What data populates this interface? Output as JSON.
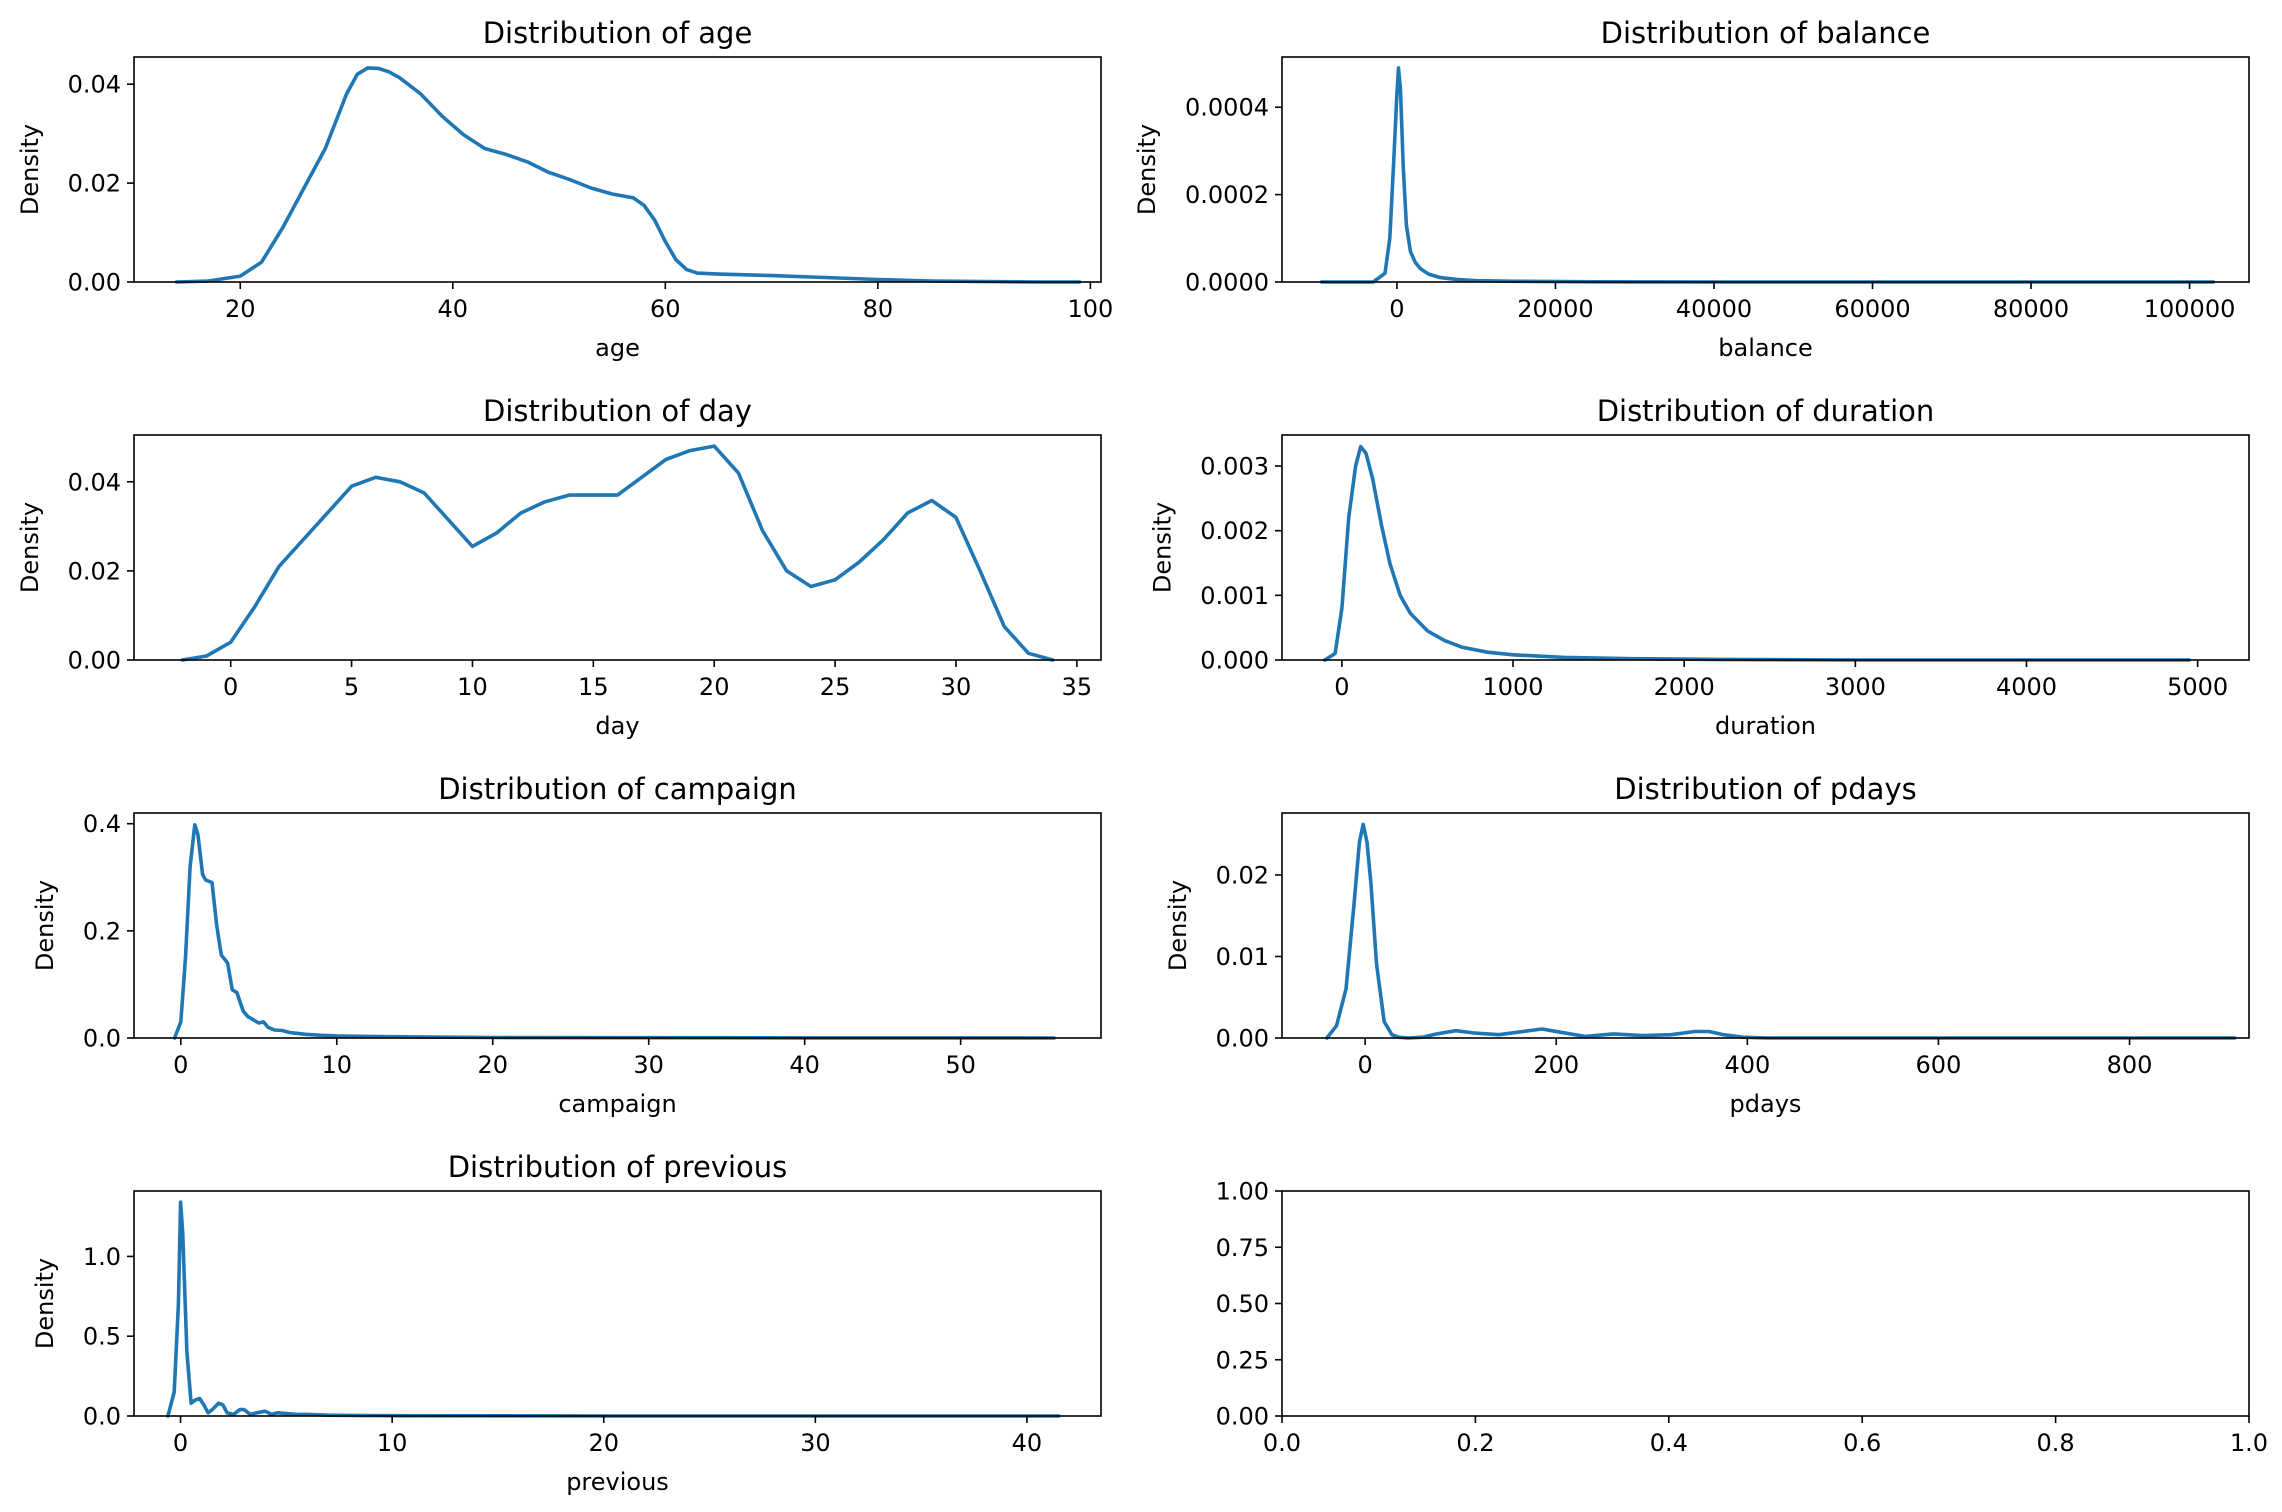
{
  "chart_data": [
    {
      "type": "line",
      "title": "Distribution of age",
      "xlabel": "age",
      "ylabel": "Density",
      "xlim": [
        10,
        101
      ],
      "ylim": [
        0,
        0.0455
      ],
      "xticks": [
        20,
        40,
        60,
        80,
        100
      ],
      "yticks": [
        0.0,
        0.02,
        0.04
      ],
      "ytick_labels": [
        "0.00",
        "0.02",
        "0.04"
      ],
      "grid": false,
      "color": "#1f77b4",
      "x": [
        14,
        17,
        20,
        22,
        24,
        26,
        28,
        30,
        31,
        32,
        33,
        34,
        35,
        37,
        39,
        41,
        43,
        45,
        47,
        49,
        51,
        53,
        55,
        57,
        58,
        59,
        60,
        61,
        62,
        63,
        65,
        70,
        75,
        80,
        85,
        90,
        95,
        99
      ],
      "y": [
        0.0,
        0.0002,
        0.0012,
        0.004,
        0.011,
        0.019,
        0.027,
        0.038,
        0.042,
        0.0433,
        0.0432,
        0.0425,
        0.0413,
        0.038,
        0.0335,
        0.0298,
        0.027,
        0.0258,
        0.0243,
        0.0222,
        0.0207,
        0.019,
        0.0178,
        0.017,
        0.0155,
        0.0125,
        0.0082,
        0.0045,
        0.0025,
        0.0018,
        0.0016,
        0.0013,
        0.0009,
        0.0005,
        0.0002,
        0.0001,
        0.0,
        0.0
      ]
    },
    {
      "type": "line",
      "title": "Distribution of balance",
      "xlabel": "balance",
      "ylabel": "Density",
      "xlim": [
        -14500,
        107500
      ],
      "ylim": [
        0,
        0.000515
      ],
      "xticks": [
        0,
        20000,
        40000,
        60000,
        80000,
        100000
      ],
      "yticks": [
        0.0,
        0.0002,
        0.0004
      ],
      "ytick_labels": [
        "0.0000",
        "0.0002",
        "0.0004"
      ],
      "grid": false,
      "color": "#1f77b4",
      "x": [
        -9500,
        -3000,
        -1500,
        -900,
        -400,
        0,
        200,
        450,
        800,
        1200,
        1700,
        2300,
        3000,
        4000,
        5500,
        7500,
        10000,
        15000,
        25000,
        40000,
        60000,
        80000,
        103000
      ],
      "y": [
        0.0,
        0.0,
        2e-05,
        0.0001,
        0.00028,
        0.00043,
        0.00049,
        0.00044,
        0.00026,
        0.00013,
        7e-05,
        4.5e-05,
        3e-05,
        1.8e-05,
        1e-05,
        6e-06,
        3e-06,
        1.5e-06,
        5e-07,
        0.0,
        0.0,
        0.0,
        0.0
      ]
    },
    {
      "type": "line",
      "title": "Distribution of day",
      "xlabel": "day",
      "ylabel": "Density",
      "xlim": [
        -4,
        36
      ],
      "ylim": [
        0,
        0.0505
      ],
      "xticks": [
        0,
        5,
        10,
        15,
        20,
        25,
        30,
        35
      ],
      "yticks": [
        0.0,
        0.02,
        0.04
      ],
      "ytick_labels": [
        "0.00",
        "0.02",
        "0.04"
      ],
      "grid": false,
      "color": "#1f77b4",
      "x": [
        -2,
        -1,
        0,
        1,
        2,
        3,
        4,
        5,
        6,
        7,
        8,
        9,
        10,
        11,
        12,
        13,
        14,
        15,
        16,
        17,
        18,
        19,
        20,
        21,
        22,
        23,
        24,
        25,
        26,
        27,
        28,
        29,
        30,
        31,
        32,
        33,
        34
      ],
      "y": [
        0.0,
        0.0009,
        0.004,
        0.012,
        0.021,
        0.027,
        0.033,
        0.039,
        0.041,
        0.04,
        0.0375,
        0.0315,
        0.0255,
        0.0285,
        0.033,
        0.0355,
        0.037,
        0.037,
        0.037,
        0.041,
        0.045,
        0.047,
        0.048,
        0.042,
        0.029,
        0.02,
        0.0165,
        0.018,
        0.022,
        0.027,
        0.033,
        0.0358,
        0.032,
        0.02,
        0.0075,
        0.0015,
        0.0
      ]
    },
    {
      "type": "line",
      "title": "Distribution of duration",
      "xlabel": "duration",
      "ylabel": "Density",
      "xlim": [
        -350,
        5300
      ],
      "ylim": [
        0,
        0.00348
      ],
      "xticks": [
        0,
        1000,
        2000,
        3000,
        4000,
        5000
      ],
      "yticks": [
        0.0,
        0.001,
        0.002,
        0.003
      ],
      "ytick_labels": [
        "0.000",
        "0.001",
        "0.002",
        "0.003"
      ],
      "grid": false,
      "color": "#1f77b4",
      "x": [
        -100,
        -40,
        0,
        40,
        80,
        110,
        140,
        180,
        230,
        280,
        340,
        400,
        500,
        600,
        700,
        850,
        1000,
        1300,
        1700,
        2200,
        3000,
        4000,
        4950
      ],
      "y": [
        0.0,
        0.0001,
        0.0008,
        0.0022,
        0.003,
        0.0033,
        0.0032,
        0.0028,
        0.0021,
        0.0015,
        0.001,
        0.00072,
        0.00045,
        0.0003,
        0.0002,
        0.00012,
        8e-05,
        4e-05,
        2e-05,
        1e-05,
        0.0,
        0.0,
        0.0
      ]
    },
    {
      "type": "line",
      "title": "Distribution of campaign",
      "xlabel": "campaign",
      "ylabel": "Density",
      "xlim": [
        -3,
        59
      ],
      "ylim": [
        0,
        0.42
      ],
      "xticks": [
        0,
        10,
        20,
        30,
        40,
        50
      ],
      "yticks": [
        0.0,
        0.2,
        0.4
      ],
      "ytick_labels": [
        "0.0",
        "0.2",
        "0.4"
      ],
      "grid": false,
      "color": "#1f77b4",
      "x": [
        -0.4,
        0,
        0.3,
        0.6,
        0.9,
        1.1,
        1.4,
        1.6,
        2.0,
        2.3,
        2.6,
        3.0,
        3.3,
        3.6,
        4.0,
        4.3,
        4.6,
        5.0,
        5.3,
        5.6,
        6.0,
        6.5,
        7,
        8,
        9,
        10,
        12,
        15,
        20,
        30,
        40,
        56
      ],
      "y": [
        0.0,
        0.03,
        0.15,
        0.32,
        0.398,
        0.38,
        0.305,
        0.295,
        0.29,
        0.21,
        0.155,
        0.14,
        0.09,
        0.085,
        0.05,
        0.04,
        0.035,
        0.028,
        0.03,
        0.02,
        0.015,
        0.014,
        0.01,
        0.007,
        0.005,
        0.004,
        0.003,
        0.002,
        0.001,
        0.0005,
        0.0002,
        0.0
      ]
    },
    {
      "type": "line",
      "title": "Distribution of pdays",
      "xlabel": "pdays",
      "ylabel": "Density",
      "xlim": [
        -87,
        925
      ],
      "ylim": [
        0,
        0.0276
      ],
      "xticks": [
        0,
        200,
        400,
        600,
        800
      ],
      "yticks": [
        0.0,
        0.01,
        0.02
      ],
      "ytick_labels": [
        "0.00",
        "0.01",
        "0.02"
      ],
      "grid": false,
      "color": "#1f77b4",
      "x": [
        -40,
        -30,
        -20,
        -12,
        -6,
        -2,
        2,
        6,
        12,
        20,
        28,
        35,
        45,
        60,
        75,
        95,
        115,
        140,
        165,
        185,
        205,
        230,
        260,
        290,
        320,
        345,
        360,
        375,
        395,
        420,
        500,
        600,
        700,
        800,
        910
      ],
      "y": [
        0.0,
        0.0015,
        0.006,
        0.016,
        0.024,
        0.0262,
        0.024,
        0.019,
        0.009,
        0.002,
        0.0004,
        0.0001,
        0.0,
        0.0001,
        0.0005,
        0.0009,
        0.0006,
        0.0004,
        0.0008,
        0.0011,
        0.0007,
        0.0002,
        0.0005,
        0.0003,
        0.0004,
        0.0008,
        0.0008,
        0.0004,
        0.0001,
        0.0,
        0.0,
        0.0,
        0.0,
        0.0,
        0.0
      ]
    },
    {
      "type": "line",
      "title": "Distribution of previous",
      "xlabel": "previous",
      "ylabel": "Density",
      "xlim": [
        -2.2,
        43.5
      ],
      "ylim": [
        0,
        1.41
      ],
      "xticks": [
        0,
        10,
        20,
        30,
        40
      ],
      "yticks": [
        0.0,
        0.5,
        1.0
      ],
      "ytick_labels": [
        "0.0",
        "0.5",
        "1.0"
      ],
      "grid": false,
      "color": "#1f77b4",
      "x": [
        -0.6,
        -0.3,
        -0.1,
        0,
        0.1,
        0.3,
        0.5,
        0.7,
        0.9,
        1.1,
        1.3,
        1.5,
        1.8,
        2.0,
        2.2,
        2.5,
        2.8,
        3.0,
        3.3,
        3.6,
        4.0,
        4.3,
        4.6,
        5.0,
        5.5,
        6.0,
        7,
        8,
        10,
        15,
        20,
        30,
        41.5
      ],
      "y": [
        0.0,
        0.15,
        0.7,
        1.34,
        1.15,
        0.4,
        0.08,
        0.1,
        0.11,
        0.07,
        0.02,
        0.04,
        0.08,
        0.07,
        0.02,
        0.01,
        0.04,
        0.04,
        0.01,
        0.02,
        0.03,
        0.01,
        0.02,
        0.015,
        0.01,
        0.01,
        0.005,
        0.004,
        0.002,
        0.001,
        0.0,
        0.0,
        0.0
      ]
    },
    {
      "type": "line",
      "title": "",
      "xlabel": "",
      "ylabel": "",
      "xlim": [
        0,
        1
      ],
      "ylim": [
        0,
        1
      ],
      "xticks": [
        0.0,
        0.2,
        0.4,
        0.6,
        0.8,
        1.0
      ],
      "xtick_labels": [
        "0.0",
        "0.2",
        "0.4",
        "0.6",
        "0.8",
        "1.0"
      ],
      "yticks": [
        0.0,
        0.25,
        0.5,
        0.75,
        1.0
      ],
      "ytick_labels": [
        "0.00",
        "0.25",
        "0.50",
        "0.75",
        "1.00"
      ],
      "grid": false,
      "color": "#1f77b4",
      "x": [],
      "y": []
    }
  ]
}
